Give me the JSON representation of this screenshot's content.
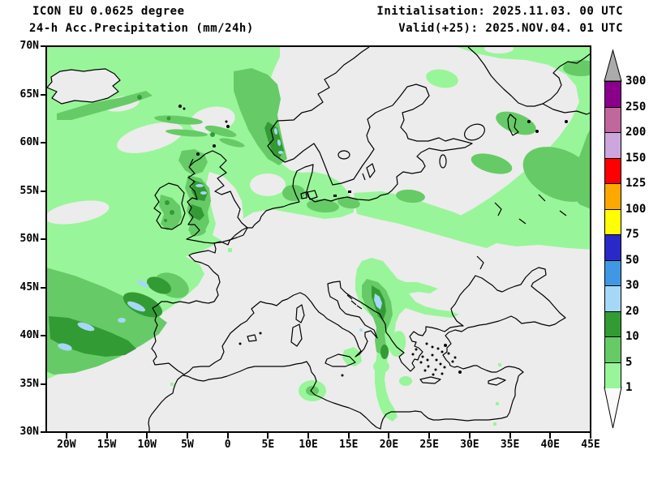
{
  "header": {
    "model_line": "ICON EU 0.0625 degree",
    "product_line": "24-h Acc.Precipitation (mm/24h)",
    "init_line": "Initialisation: 2025.11.03. 00 UTC",
    "valid_line": "Valid(+25): 2025.NOV.04. 01 UTC"
  },
  "axes": {
    "lat_labels": [
      "70N",
      "65N",
      "60N",
      "55N",
      "50N",
      "45N",
      "40N",
      "35N",
      "30N"
    ],
    "lon_labels": [
      "20W",
      "15W",
      "10W",
      "5W",
      "0",
      "5E",
      "10E",
      "15E",
      "20E",
      "25E",
      "30E",
      "35E",
      "40E",
      "45E"
    ]
  },
  "colorbar": {
    "levels": [
      "300",
      "250",
      "200",
      "150",
      "125",
      "100",
      "75",
      "50",
      "30",
      "20",
      "10",
      "5",
      "1"
    ],
    "segment_colors_top_to_bottom": [
      "#8b008b",
      "#c0679b",
      "#cda6de",
      "#ff0000",
      "#ffa800",
      "#ffff00",
      "#2929c8",
      "#4098e4",
      "#a5d8f7",
      "#339b33",
      "#66cb66",
      "#99f599"
    ],
    "over_arrow_color": "#ababab",
    "under_arrow_color": "#fafafa"
  },
  "map": {
    "background": "#ececec",
    "coastline_color": "#000000",
    "precip_colors": {
      "light_green": "#99f599",
      "medium_green": "#66cb66",
      "dark_green": "#339b33",
      "light_blue": "#a5d8f7"
    },
    "precip_levels_mm": {
      "light_green": "1-5",
      "medium_green": "5-10",
      "dark_green": "10-20",
      "light_blue": "20-30"
    }
  }
}
